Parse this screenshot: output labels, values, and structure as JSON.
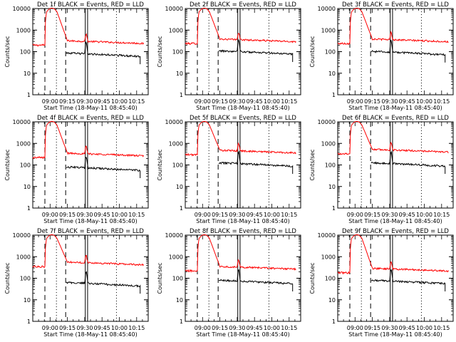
{
  "figure": {
    "background": "#ffffff",
    "foreground": "#000000"
  },
  "chart_data": [
    {
      "type": "line",
      "title": "Det 1f BLACK = Events, RED = LLD",
      "xlabel": "Start Time (18-May-11 08:45:40)",
      "ylabel": "Counts/sec"
    },
    {
      "type": "line",
      "title": "Det 2f BLACK = Events, RED = LLD",
      "xlabel": "Start Time (18-May-11 08:45:40)",
      "ylabel": "Counts/sec"
    },
    {
      "type": "line",
      "title": "Det 3f BLACK = Events, RED = LLD",
      "xlabel": "Start Time (18-May-11 08:45:40)",
      "ylabel": "Counts/sec"
    },
    {
      "type": "line",
      "title": "Det 4f BLACK = Events, RED = LLD",
      "xlabel": "Start Time (18-May-11 08:45:40)",
      "ylabel": "Counts/sec"
    },
    {
      "type": "line",
      "title": "Det 5f BLACK = Events, RED = LLD",
      "xlabel": "Start Time (18-May-11 08:45:40)",
      "ylabel": "Counts/sec"
    },
    {
      "type": "line",
      "title": "Det 6f BLACK = Events, RED = LLD",
      "xlabel": "Start Time (18-May-11 08:45:40)",
      "ylabel": "Counts/sec"
    },
    {
      "type": "line",
      "title": "Det 7f BLACK = Events, RED = LLD",
      "xlabel": "Start Time (18-May-11 08:45:40)",
      "ylabel": "Counts/sec"
    },
    {
      "type": "line",
      "title": "Det 8f BLACK = Events, RED = LLD",
      "xlabel": "Start Time (18-May-11 08:45:40)",
      "ylabel": "Counts/sec"
    },
    {
      "type": "line",
      "title": "Det 9f BLACK = Events, RED = LLD",
      "xlabel": "Start Time (18-May-11 08:45:40)",
      "ylabel": "Counts/sec"
    }
  ],
  "shared": {
    "x_ticks": [
      "09:00",
      "09:15",
      "09:30",
      "09:45",
      "10:00",
      "10:15"
    ],
    "x_tick_values": [
      15,
      30,
      45,
      60,
      75,
      90
    ],
    "x_range_minutes": [
      0,
      100
    ],
    "y_scale": "log",
    "y_range": [
      1,
      10000
    ],
    "y_ticks": [
      "1",
      "10",
      "100",
      "1000",
      "10000"
    ],
    "y_tick_values": [
      1,
      10,
      100,
      1000,
      10000
    ],
    "series_colors": {
      "events": "#000000",
      "lld": "#ff0000"
    },
    "dashed_lines_minutes": [
      10.5,
      28.5
    ],
    "dotted_lines_minutes": [
      20.5,
      72.5
    ],
    "solid_lines_minutes": [
      45.5,
      47.5
    ],
    "lld_levels": [
      200,
      240,
      240,
      220,
      300,
      330,
      350,
      220,
      180
    ],
    "events_levels": [
      75,
      95,
      90,
      70,
      110,
      110,
      55,
      70,
      70
    ]
  }
}
